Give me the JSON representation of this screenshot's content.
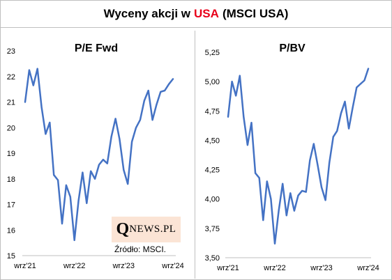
{
  "title": {
    "prefix": "Wyceny akcji w",
    "highlight": "USA",
    "suffix": "(MSCI USA)"
  },
  "colors": {
    "series": "#4472c4",
    "highlight": "#e8001a",
    "logo_bg": "#fbe4d5"
  },
  "logo": {
    "q": "Q",
    "rest": "NEWS.PL"
  },
  "source": "Źródło: MSCI.",
  "chart_data": [
    {
      "type": "line",
      "title": "P/E Fwd",
      "x": [
        "2021-09",
        "2021-10",
        "2021-11",
        "2021-12",
        "2022-01",
        "2022-02",
        "2022-03",
        "2022-04",
        "2022-05",
        "2022-06",
        "2022-07",
        "2022-08",
        "2022-09",
        "2022-10",
        "2022-11",
        "2022-12",
        "2023-01",
        "2023-02",
        "2023-03",
        "2023-04",
        "2023-05",
        "2023-06",
        "2023-07",
        "2023-08",
        "2023-09",
        "2023-10",
        "2023-11",
        "2023-12",
        "2024-01",
        "2024-02",
        "2024-03",
        "2024-04",
        "2024-05",
        "2024-06",
        "2024-07",
        "2024-08",
        "2024-09"
      ],
      "x_tick_labels": [
        {
          "at": "2021-09",
          "label": "wrz'21"
        },
        {
          "at": "2022-09",
          "label": "wrz'22"
        },
        {
          "at": "2023-09",
          "label": "wrz'23"
        },
        {
          "at": "2024-09",
          "label": "wrz'24"
        }
      ],
      "series": [
        {
          "values": [
            21.0,
            22.25,
            21.65,
            22.3,
            20.8,
            19.75,
            20.2,
            18.15,
            17.95,
            16.25,
            17.75,
            17.3,
            15.6,
            17.15,
            18.25,
            17.05,
            18.3,
            18.0,
            18.55,
            18.75,
            18.6,
            19.65,
            20.35,
            19.55,
            18.35,
            17.8,
            19.45,
            20.0,
            20.3,
            21.05,
            21.45,
            20.3,
            20.9,
            21.4,
            21.45,
            21.7,
            21.9
          ]
        }
      ],
      "ylim": [
        15,
        23
      ],
      "yticks": [
        15,
        16,
        17,
        18,
        19,
        20,
        21,
        22,
        23
      ],
      "ytick_labels": [
        "15",
        "16",
        "17",
        "18",
        "19",
        "20",
        "21",
        "22",
        "23"
      ],
      "grid": false
    },
    {
      "type": "line",
      "title": "P/BV",
      "x": [
        "2021-09",
        "2021-10",
        "2021-11",
        "2021-12",
        "2022-01",
        "2022-02",
        "2022-03",
        "2022-04",
        "2022-05",
        "2022-06",
        "2022-07",
        "2022-08",
        "2022-09",
        "2022-10",
        "2022-11",
        "2022-12",
        "2023-01",
        "2023-02",
        "2023-03",
        "2023-04",
        "2023-05",
        "2023-06",
        "2023-07",
        "2023-08",
        "2023-09",
        "2023-10",
        "2023-11",
        "2023-12",
        "2024-01",
        "2024-02",
        "2024-03",
        "2024-04",
        "2024-05",
        "2024-06",
        "2024-07",
        "2024-08",
        "2024-09"
      ],
      "x_tick_labels": [
        {
          "at": "2021-09",
          "label": "wrz'21"
        },
        {
          "at": "2022-09",
          "label": "wrz'22"
        },
        {
          "at": "2023-09",
          "label": "wrz'23"
        },
        {
          "at": "2024-09",
          "label": "wrz'24"
        }
      ],
      "series": [
        {
          "values": [
            4.7,
            5.0,
            4.88,
            5.05,
            4.7,
            4.46,
            4.65,
            4.22,
            4.18,
            3.82,
            4.15,
            4.0,
            3.62,
            3.9,
            4.13,
            3.86,
            4.05,
            3.9,
            4.03,
            4.07,
            4.06,
            4.33,
            4.47,
            4.29,
            4.1,
            3.99,
            4.31,
            4.53,
            4.58,
            4.73,
            4.83,
            4.6,
            4.78,
            4.95,
            4.98,
            5.01,
            5.11
          ]
        }
      ],
      "ylim": [
        3.5,
        5.25
      ],
      "yticks": [
        3.5,
        3.75,
        4.0,
        4.25,
        4.5,
        4.75,
        5.0,
        5.25
      ],
      "ytick_labels": [
        "3,50",
        "3,75",
        "4,00",
        "4,25",
        "4,50",
        "4,75",
        "5,00",
        "5,25"
      ],
      "grid": false
    }
  ]
}
